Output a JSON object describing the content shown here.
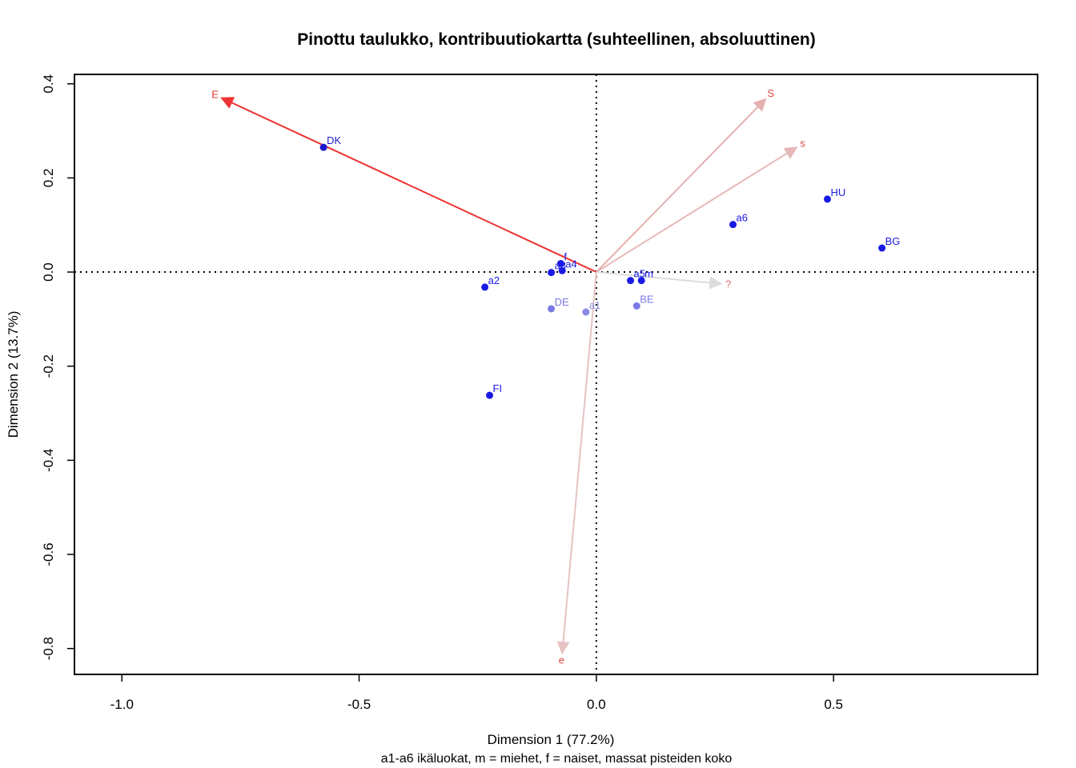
{
  "chart_data": {
    "type": "scatter",
    "title": "Pinottu taulukko, kontribuutiokartta (suhteellinen, absoluuttinen)",
    "xlabel": "Dimension 1 (77.2%)",
    "ylabel": "Dimension 2 (13.7%)",
    "subtitle": "a1-a6 ikäluokat, m = miehet, f = naiset, massat pisteiden koko",
    "xlim": [
      -1.1,
      0.93
    ],
    "ylim": [
      -0.855,
      0.42
    ],
    "xticks": [
      -1.0,
      -0.5,
      0.0,
      0.5
    ],
    "xtick_labels": [
      "-1.0",
      "-0.5",
      "0.0",
      "0.5"
    ],
    "yticks": [
      0.4,
      0.2,
      0.0,
      -0.2,
      -0.4,
      -0.6,
      -0.8
    ],
    "ytick_labels": [
      "0.4",
      "0.2",
      "0.0",
      "-0.2",
      "-0.4",
      "-0.6",
      "-0.8"
    ],
    "reference_lines": {
      "x": 0,
      "y": 0,
      "style": "dotted"
    },
    "row_points": [
      {
        "label": "DK",
        "x": -0.575,
        "y": 0.265,
        "color": "#1a1acc"
      },
      {
        "label": "a2",
        "x": -0.235,
        "y": -0.032,
        "color": "#1a1ae6"
      },
      {
        "label": "DE",
        "x": -0.095,
        "y": -0.078,
        "color": "#7a7ae6"
      },
      {
        "label": "a1",
        "x": -0.022,
        "y": -0.085,
        "color": "#8a8ae6"
      },
      {
        "label": "f",
        "x": -0.075,
        "y": 0.018,
        "color": "#1a1ae6"
      },
      {
        "label": "a4",
        "x": -0.072,
        "y": 0.003,
        "color": "#1a1ae6"
      },
      {
        "label": "a3",
        "x": -0.095,
        "y": -0.001,
        "color": "#1a1ae6"
      },
      {
        "label": "FI",
        "x": -0.225,
        "y": -0.262,
        "color": "#1a1ae6"
      },
      {
        "label": "a5",
        "x": 0.072,
        "y": -0.018,
        "color": "#1a1ae6"
      },
      {
        "label": "m",
        "x": 0.095,
        "y": -0.018,
        "color": "#1a1ae6"
      },
      {
        "label": "BE",
        "x": 0.085,
        "y": -0.072,
        "color": "#7a7ae6"
      },
      {
        "label": "a6",
        "x": 0.288,
        "y": 0.101,
        "color": "#1a1ae6"
      },
      {
        "label": "HU",
        "x": 0.487,
        "y": 0.155,
        "color": "#1a1ae6"
      },
      {
        "label": "BG",
        "x": 0.602,
        "y": 0.051,
        "color": "#1a1ae6"
      }
    ],
    "column_arrows": [
      {
        "label": "E",
        "x": -0.79,
        "y": 0.37,
        "color": "#ee3333"
      },
      {
        "label": "S",
        "x": 0.357,
        "y": 0.368,
        "color": "#e6b0b0"
      },
      {
        "label": "s",
        "x": 0.422,
        "y": 0.265,
        "color": "#e6b8b8"
      },
      {
        "label": "?",
        "x": 0.263,
        "y": -0.025,
        "color": "#dcdcdc"
      },
      {
        "label": "e",
        "x": -0.072,
        "y": -0.81,
        "color": "#e6c4c4"
      }
    ]
  }
}
